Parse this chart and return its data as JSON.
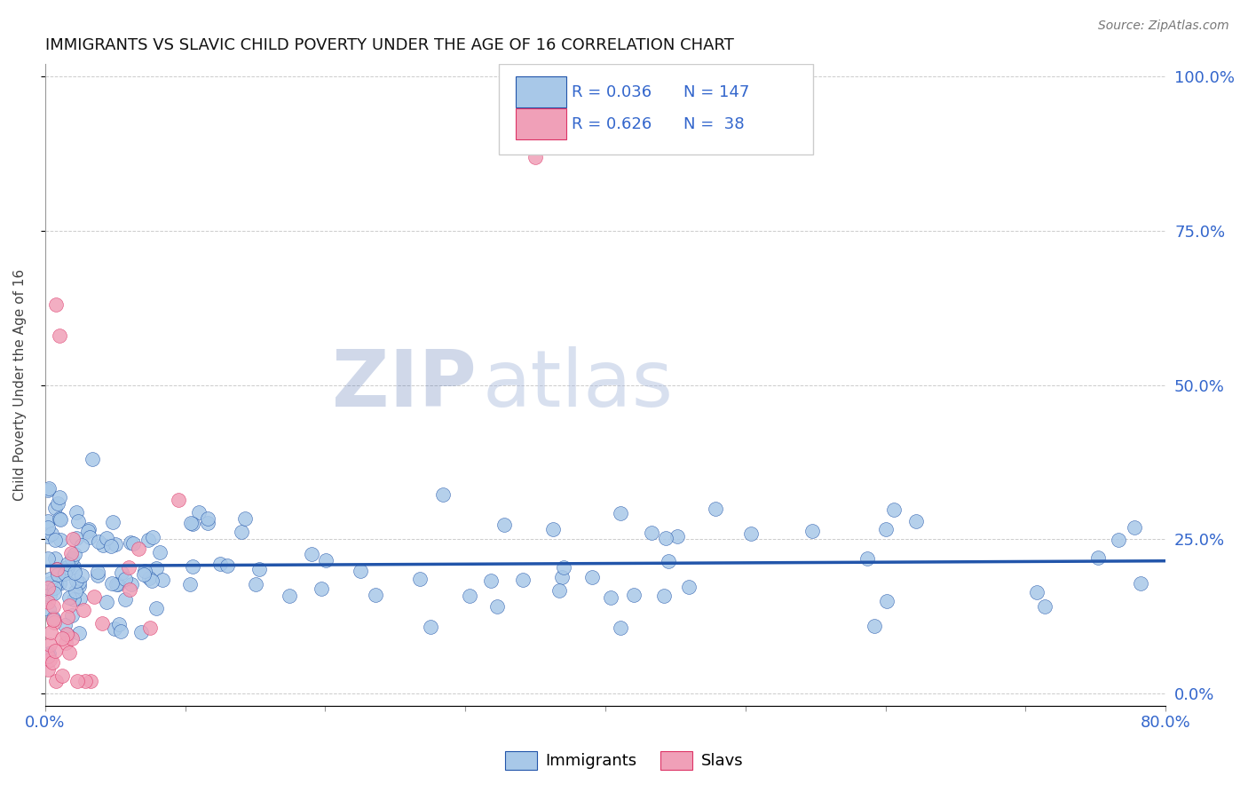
{
  "title": "IMMIGRANTS VS SLAVIC CHILD POVERTY UNDER THE AGE OF 16 CORRELATION CHART",
  "source": "Source: ZipAtlas.com",
  "ylabel": "Child Poverty Under the Age of 16",
  "xmin": 0.0,
  "xmax": 0.8,
  "ymin": -0.02,
  "ymax": 1.02,
  "immigrants_color": "#a8c8e8",
  "slavs_color": "#f0a0b8",
  "trend_immigrants_color": "#2255aa",
  "trend_slavs_color": "#dd3366",
  "watermark_zip_color": "#4466aa",
  "watermark_atlas_color": "#aabbdd",
  "grid_color": "#aaaaaa",
  "tick_label_color": "#3366cc",
  "title_color": "#111111",
  "source_color": "#777777",
  "legend_text_color": "#3366cc",
  "R_imm": "0.036",
  "N_imm": "147",
  "R_slavs": "0.626",
  "N_slavs": "38",
  "imm_seed": 99,
  "slavs_seed": 7
}
